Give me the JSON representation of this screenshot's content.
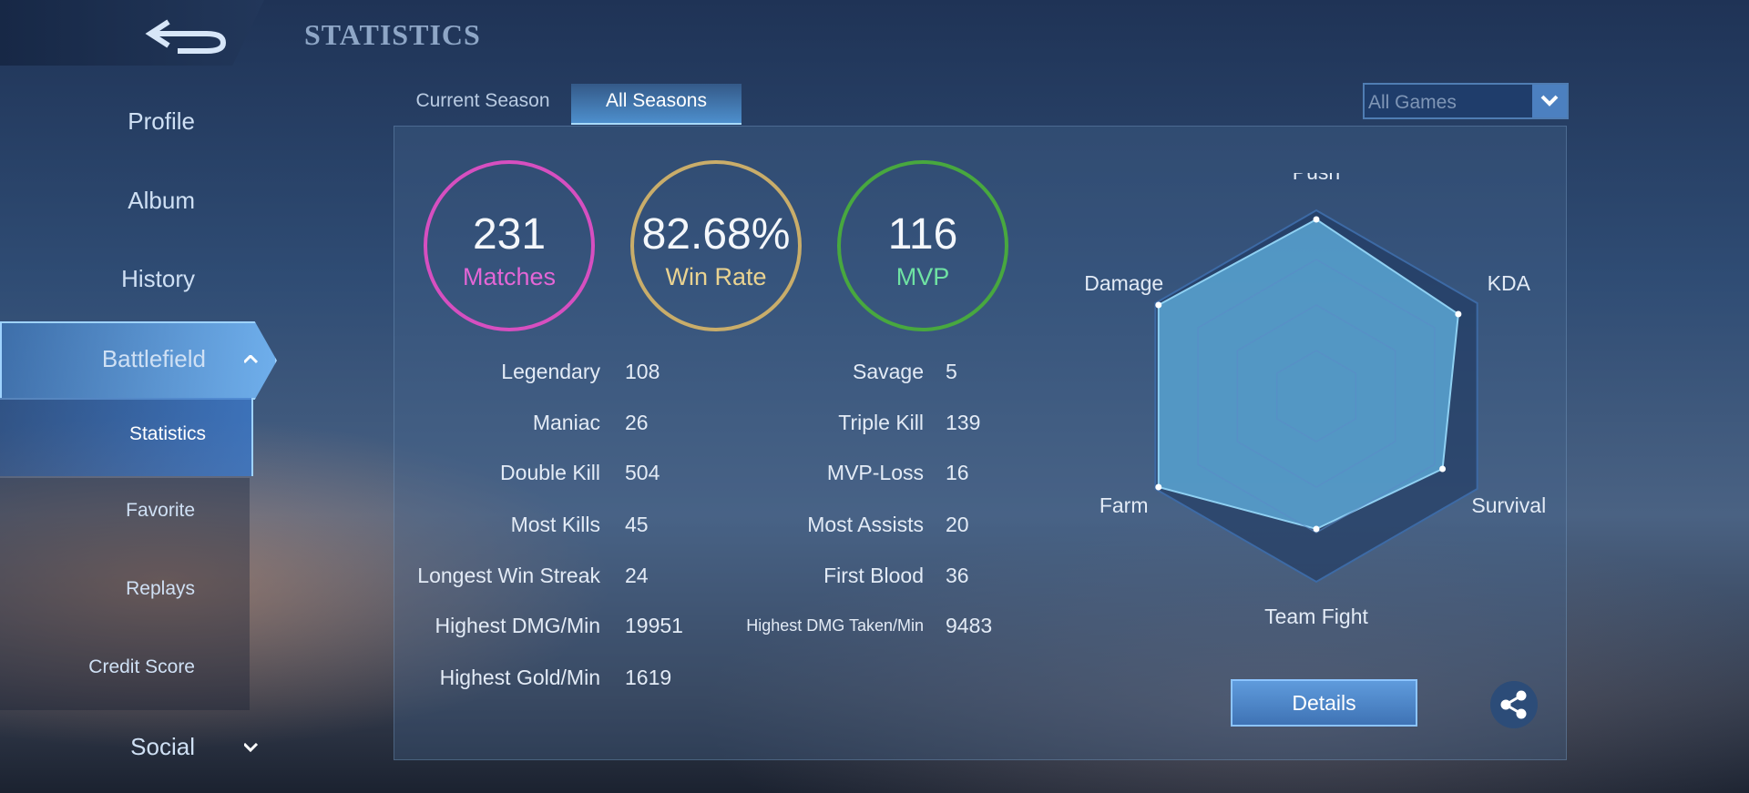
{
  "header": {
    "title": "STATISTICS"
  },
  "menu": {
    "items": [
      "Profile",
      "Album",
      "History",
      "Battlefield",
      "Statistics",
      "Favorite",
      "Replays",
      "Credit Score",
      "Social"
    ]
  },
  "tabs": [
    "Current Season",
    "All Seasons"
  ],
  "filter": "All Games",
  "summary": [
    {
      "value": "231",
      "label": "Matches"
    },
    {
      "value": "82.68%",
      "label": "Win Rate"
    },
    {
      "value": "116",
      "label": "MVP"
    }
  ],
  "stats": {
    "left": [
      {
        "label": "Legendary",
        "value": "108"
      },
      {
        "label": "Maniac",
        "value": "26"
      },
      {
        "label": "Double Kill",
        "value": "504"
      },
      {
        "label": "Most Kills",
        "value": "45"
      },
      {
        "label": "Longest Win Streak",
        "value": "24"
      },
      {
        "label": "Highest DMG/Min",
        "value": "19951"
      },
      {
        "label": "Highest Gold/Min",
        "value": "1619"
      }
    ],
    "right": [
      {
        "label": "Savage",
        "value": "5"
      },
      {
        "label": "Triple Kill",
        "value": "139"
      },
      {
        "label": "MVP-Loss",
        "value": "16"
      },
      {
        "label": "Most Assists",
        "value": "20"
      },
      {
        "label": "First Blood",
        "value": "36"
      },
      {
        "label": "Highest DMG Taken/Min",
        "value": "9483"
      }
    ]
  },
  "radar": {
    "axes": [
      "Push",
      "KDA",
      "Survival",
      "Team Fight",
      "Farm",
      "Damage"
    ],
    "values": [
      0.97,
      0.9,
      0.8,
      0.73,
      1,
      1
    ]
  },
  "button": "Details"
}
